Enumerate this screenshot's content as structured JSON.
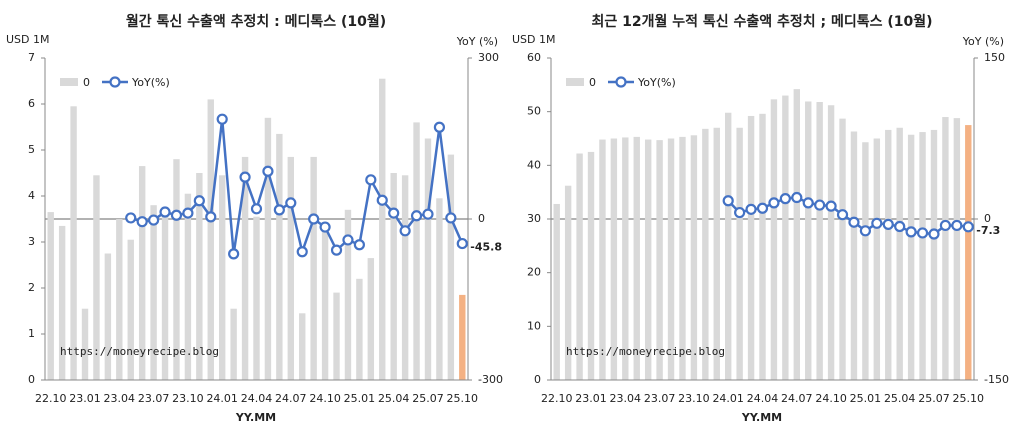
{
  "chart_data": [
    {
      "type": "bar_line",
      "title": "월간 톡신 수출액 추정치 : 메디톡스 (10월)",
      "y_label": "USD 1M",
      "y2_label": "YoY (%)",
      "x_label": "YY.MM",
      "annotation": "https://moneyrecipe.blog",
      "categories": [
        "22.10",
        null,
        null,
        "23.01",
        null,
        null,
        "23.04",
        null,
        null,
        "23.07",
        null,
        null,
        "23.10",
        null,
        null,
        "24.01",
        null,
        null,
        "24.04",
        null,
        null,
        "24.07",
        null,
        null,
        "24.10",
        null,
        null,
        "25.01",
        null,
        null,
        "25.04",
        null,
        null,
        "25.07",
        null,
        null,
        "25.10"
      ],
      "series": [
        {
          "name": "0",
          "kind": "bar",
          "color": "#d9d9d9",
          "colors": [
            "#d9d9d9",
            "#d9d9d9",
            "#d9d9d9",
            "#d9d9d9",
            "#d9d9d9",
            "#d9d9d9",
            "#d9d9d9",
            "#d9d9d9",
            "#d9d9d9",
            "#d9d9d9",
            "#d9d9d9",
            "#d9d9d9",
            "#d9d9d9",
            "#d9d9d9",
            "#d9d9d9",
            "#d9d9d9",
            "#d9d9d9",
            "#d9d9d9",
            "#d9d9d9",
            "#d9d9d9",
            "#d9d9d9",
            "#d9d9d9",
            "#d9d9d9",
            "#d9d9d9",
            "#d9d9d9",
            "#d9d9d9",
            "#d9d9d9",
            "#d9d9d9",
            "#d9d9d9",
            "#d9d9d9",
            "#d9d9d9",
            "#d9d9d9",
            "#d9d9d9",
            "#d9d9d9",
            "#d9d9d9",
            "#d9d9d9",
            "#f4b183"
          ],
          "values": [
            3.65,
            3.35,
            5.95,
            1.55,
            4.45,
            2.75,
            3.5,
            3.05,
            4.65,
            3.8,
            3.75,
            4.8,
            4.05,
            4.5,
            6.1,
            4.45,
            1.55,
            4.85,
            3.55,
            5.7,
            5.35,
            4.85,
            1.45,
            4.85,
            3.3,
            1.9,
            3.7,
            2.2,
            2.65,
            6.55,
            4.5,
            4.45,
            5.6,
            5.25,
            3.95,
            4.9,
            1.85
          ]
        },
        {
          "name": "YoY(%)",
          "kind": "line",
          "axis": "y2",
          "color": "#4472c4",
          "label_last": true,
          "label_color": "#ff0000",
          "values": [
            null,
            null,
            null,
            null,
            null,
            null,
            null,
            2,
            -5,
            -2,
            13,
            7,
            11,
            34,
            4,
            186,
            -65,
            78,
            19,
            89,
            17,
            30,
            -61,
            0,
            -15,
            -58,
            -39,
            -48,
            73,
            35,
            11,
            -22,
            6,
            9,
            171,
            2,
            -45.8
          ]
        }
      ],
      "ylim": [
        0,
        7
      ],
      "yticks": [
        0,
        1,
        2,
        3,
        4,
        5,
        6,
        7
      ],
      "y2lim": [
        -300,
        300
      ],
      "y2ticks": [
        -300,
        0,
        300
      ],
      "legend": "top-left"
    },
    {
      "type": "bar_line",
      "title": "최근 12개월 누적 톡신 수출액 추정치 ; 메디톡스 (10월)",
      "y_label": "USD 1M",
      "y2_label": "YoY (%)",
      "x_label": "YY.MM",
      "annotation": "https://moneyrecipe.blog",
      "categories": [
        "22.10",
        null,
        null,
        "23.01",
        null,
        null,
        "23.04",
        null,
        null,
        "23.07",
        null,
        null,
        "23.10",
        null,
        null,
        "24.01",
        null,
        null,
        "24.04",
        null,
        null,
        "24.07",
        null,
        null,
        "24.10",
        null,
        null,
        "25.01",
        null,
        null,
        "25.04",
        null,
        null,
        "25.07",
        null,
        null,
        "25.10"
      ],
      "series": [
        {
          "name": "0",
          "kind": "bar",
          "color": "#d9d9d9",
          "colors": [
            "#d9d9d9",
            "#d9d9d9",
            "#d9d9d9",
            "#d9d9d9",
            "#d9d9d9",
            "#d9d9d9",
            "#d9d9d9",
            "#d9d9d9",
            "#d9d9d9",
            "#d9d9d9",
            "#d9d9d9",
            "#d9d9d9",
            "#d9d9d9",
            "#d9d9d9",
            "#d9d9d9",
            "#d9d9d9",
            "#d9d9d9",
            "#d9d9d9",
            "#d9d9d9",
            "#d9d9d9",
            "#d9d9d9",
            "#d9d9d9",
            "#d9d9d9",
            "#d9d9d9",
            "#d9d9d9",
            "#d9d9d9",
            "#d9d9d9",
            "#d9d9d9",
            "#d9d9d9",
            "#d9d9d9",
            "#d9d9d9",
            "#d9d9d9",
            "#d9d9d9",
            "#d9d9d9",
            "#d9d9d9",
            "#d9d9d9",
            "#f4b183"
          ],
          "values": [
            32.8,
            36.2,
            42.2,
            42.5,
            44.8,
            45,
            45.2,
            45.3,
            44.8,
            44.7,
            45,
            45.3,
            45.6,
            46.8,
            47,
            49.8,
            47,
            49.2,
            49.6,
            52.3,
            53,
            54.2,
            51.9,
            51.8,
            51.2,
            48.7,
            46.3,
            44.3,
            45,
            46.6,
            47,
            45.7,
            46.2,
            46.6,
            49,
            48.8,
            47.5
          ]
        },
        {
          "name": "YoY(%)",
          "kind": "line",
          "axis": "y2",
          "color": "#4472c4",
          "label_last": true,
          "label_color": "#ff0000",
          "values": [
            null,
            null,
            null,
            null,
            null,
            null,
            null,
            null,
            null,
            null,
            null,
            null,
            null,
            null,
            null,
            17,
            6,
            9,
            10,
            15,
            19,
            20,
            15,
            13,
            12,
            4,
            -3,
            -11,
            -4,
            -5,
            -7,
            -12,
            -13,
            -14,
            -6,
            -6,
            -7.3
          ]
        }
      ],
      "ylim": [
        0,
        60
      ],
      "yticks": [
        0,
        10,
        20,
        30,
        40,
        50,
        60
      ],
      "y2lim": [
        -150,
        150
      ],
      "y2ticks": [
        -150,
        0,
        150
      ],
      "legend": "top-left"
    }
  ]
}
